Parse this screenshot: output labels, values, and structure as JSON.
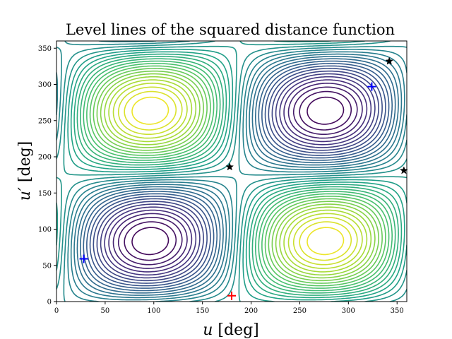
{
  "chart_data": {
    "type": "contour",
    "title": "Level lines of the squared distance function",
    "xlabel": "u [deg]",
    "ylabel": "u′ [deg]",
    "xlim": [
      0,
      360
    ],
    "ylim": [
      0,
      360
    ],
    "xticks": [
      "0",
      "50",
      "100",
      "150",
      "200",
      "250",
      "300",
      "350"
    ],
    "yticks": [
      "0",
      "50",
      "100",
      "150",
      "200",
      "250",
      "300",
      "350"
    ],
    "colormap": [
      "#440154",
      "#46327e",
      "#365c8d",
      "#277f8e",
      "#1fa187",
      "#4ac16d",
      "#a0da39",
      "#fde725"
    ],
    "markers": [
      {
        "kind": "star",
        "color": "#000000",
        "x": 342,
        "y": 332
      },
      {
        "kind": "star",
        "color": "#000000",
        "x": 178,
        "y": 186
      },
      {
        "kind": "star",
        "color": "#000000",
        "x": 357,
        "y": 181
      },
      {
        "kind": "plus",
        "color": "#0000ff",
        "x": 324,
        "y": 297
      },
      {
        "kind": "plus",
        "color": "#0000ff",
        "x": 28,
        "y": 59
      },
      {
        "kind": "plus",
        "color": "#ff0000",
        "x": 180,
        "y": 8
      }
    ]
  }
}
